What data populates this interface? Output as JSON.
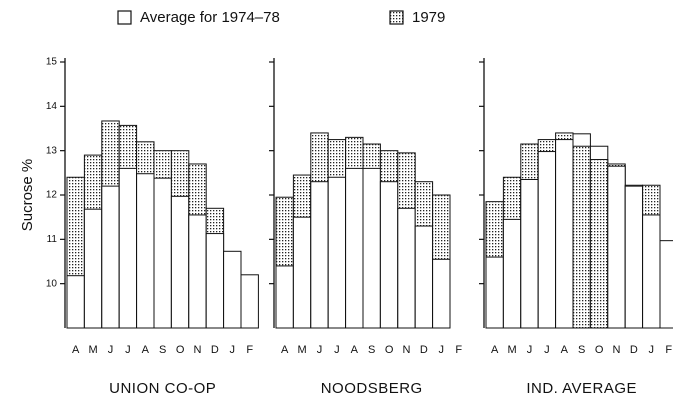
{
  "chart_data": [
    {
      "type": "bar",
      "title": "UNION CO-OP",
      "y_label": "Sucrose %",
      "categories": [
        "A",
        "M",
        "J",
        "J",
        "A",
        "S",
        "O",
        "N",
        "D",
        "J",
        "F"
      ],
      "series": [
        {
          "name": "Average for 1974–78",
          "color": "#ffffff",
          "values": [
            10.18,
            11.68,
            12.2,
            12.6,
            12.48,
            12.38,
            11.97,
            11.55,
            11.13,
            10.73,
            10.2
          ]
        },
        {
          "name": "1979",
          "color": "#ffffff",
          "pattern": "dots",
          "values": [
            12.4,
            12.9,
            13.67,
            13.57,
            13.2,
            13.0,
            13.0,
            12.7,
            11.7,
            null,
            null
          ]
        }
      ],
      "ylim": [
        9,
        15
      ],
      "yticks": [
        10,
        11,
        12,
        13,
        14,
        15
      ]
    },
    {
      "type": "bar",
      "title": "NOODSBERG",
      "categories": [
        "A",
        "M",
        "J",
        "J",
        "A",
        "S",
        "O",
        "N",
        "D",
        "J",
        "F"
      ],
      "series": [
        {
          "name": "Average for 1974–78",
          "color": "#ffffff",
          "values": [
            10.4,
            11.5,
            12.3,
            12.4,
            12.6,
            12.6,
            12.3,
            11.7,
            11.3,
            10.55,
            null
          ]
        },
        {
          "name": "1979",
          "color": "#ffffff",
          "pattern": "dots",
          "values": [
            11.95,
            12.45,
            13.4,
            13.25,
            13.3,
            13.15,
            13.0,
            12.95,
            12.3,
            12.0,
            null
          ]
        }
      ],
      "ylim": [
        9,
        15
      ],
      "yticks": [
        10,
        11,
        12,
        13,
        14,
        15
      ]
    },
    {
      "type": "bar",
      "title": "IND. AVERAGE",
      "categories": [
        "A",
        "M",
        "J",
        "J",
        "A",
        "S",
        "O",
        "N",
        "D",
        "J",
        "F"
      ],
      "series": [
        {
          "name": "Average for 1974–78",
          "color": "#ffffff",
          "values": [
            10.6,
            11.45,
            12.35,
            12.98,
            13.25,
            13.38,
            13.1,
            12.65,
            12.2,
            11.55,
            10.97
          ]
        },
        {
          "name": "1979",
          "color": "#ffffff",
          "pattern": "dots",
          "values": [
            11.85,
            12.4,
            13.15,
            13.25,
            13.4,
            13.1,
            12.8,
            12.7,
            12.22,
            12.22,
            null
          ]
        }
      ],
      "ylim": [
        9,
        15
      ],
      "yticks": [
        10,
        11,
        12,
        13,
        14,
        15
      ]
    }
  ]
}
